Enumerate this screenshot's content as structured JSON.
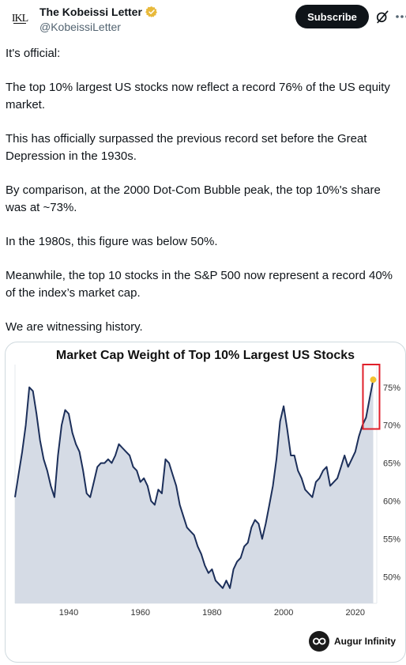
{
  "account": {
    "avatar_text": "IKL",
    "display_name": "The Kobeissi Letter",
    "handle": "@KobeissiLetter",
    "subscribe_label": "Subscribe"
  },
  "tweet": {
    "paragraphs": [
      "It's official:",
      "The top 10% largest US stocks now reflect a record 76% of the US equity market.",
      "This has officially surpassed the previous record set before the Great Depression in the 1930s.",
      "By comparison, at the 2000 Dot-Com Bubble peak, the top 10%'s share was at ~73%.",
      "In the 1980s, this figure was below 50%.",
      "Meanwhile, the top 10 stocks in the S&P 500 now represent a record 40% of the index’s market cap.",
      "We are witnessing history."
    ]
  },
  "colors": {
    "line": "#1c2f5a",
    "area": "#d5dbe5",
    "highlight_box": "#e0202a",
    "highlight_dot": "#f2c12e",
    "verified": "#e8b93a"
  },
  "icons": [
    "verified-badge-icon",
    "grok-icon",
    "more-icon",
    "augur-infinity-logo-icon"
  ],
  "chart_data": {
    "type": "area",
    "title": "Market Cap Weight of Top 10% Largest US Stocks",
    "xlabel": "",
    "ylabel": "",
    "x_ticks": [
      "1940",
      "1960",
      "1980",
      "2000",
      "2020"
    ],
    "y_ticks": [
      "50%",
      "55%",
      "60%",
      "65%",
      "70%",
      "75%"
    ],
    "xlim": [
      1925,
      2026
    ],
    "ylim": [
      46.5,
      78
    ],
    "series": [
      {
        "x": [
          1925,
          1926,
          1927,
          1928,
          1929,
          1930,
          1931,
          1932,
          1933,
          1934,
          1935,
          1936,
          1937,
          1938,
          1939,
          1940,
          1941,
          1942,
          1943,
          1944,
          1945,
          1946,
          1947,
          1948,
          1949,
          1950,
          1951,
          1952,
          1953,
          1954,
          1955,
          1956,
          1957,
          1958,
          1959,
          1960,
          1961,
          1962,
          1963,
          1964,
          1965,
          1966,
          1967,
          1968,
          1969,
          1970,
          1971,
          1972,
          1973,
          1974,
          1975,
          1976,
          1977,
          1978,
          1979,
          1980,
          1981,
          1982,
          1983,
          1984,
          1985,
          1986,
          1987,
          1988,
          1989,
          1990,
          1991,
          1992,
          1993,
          1994,
          1995,
          1996,
          1997,
          1998,
          1999,
          2000,
          2001,
          2002,
          2003,
          2004,
          2005,
          2006,
          2007,
          2008,
          2009,
          2010,
          2011,
          2012,
          2013,
          2014,
          2015,
          2016,
          2017,
          2018,
          2019,
          2020,
          2021,
          2022,
          2023,
          2024,
          2025
        ],
        "values": [
          60.5,
          63.5,
          66.5,
          70,
          75,
          74.5,
          71.5,
          68,
          65.5,
          64,
          62,
          60.5,
          66,
          70,
          72,
          71.5,
          69,
          67.5,
          66.5,
          64,
          61,
          60.5,
          62.5,
          64.5,
          65,
          65,
          65.5,
          65,
          66,
          67.5,
          67,
          66.5,
          66,
          64.5,
          64,
          62.5,
          63,
          62,
          60,
          59.5,
          61.5,
          61,
          65.5,
          65,
          63.5,
          62,
          59.5,
          58,
          56.5,
          56,
          55.5,
          54,
          53,
          51.5,
          50.5,
          51,
          49.5,
          49,
          48.5,
          49.5,
          48.5,
          51,
          52,
          52.5,
          54,
          54.5,
          56.5,
          57.5,
          57,
          55,
          57,
          59.5,
          62,
          65.5,
          70.5,
          72.5,
          69.5,
          66,
          66,
          64,
          63,
          61.5,
          61,
          60.5,
          62.5,
          63,
          64,
          64.5,
          62,
          62.5,
          63,
          64.5,
          66,
          64.5,
          65.5,
          66.5,
          68.5,
          70,
          71,
          73.5,
          76
        ]
      }
    ],
    "highlight": {
      "x": 2025,
      "y": 76
    },
    "grid": false,
    "legend": "none",
    "source_brand": "Augur Infinity"
  }
}
